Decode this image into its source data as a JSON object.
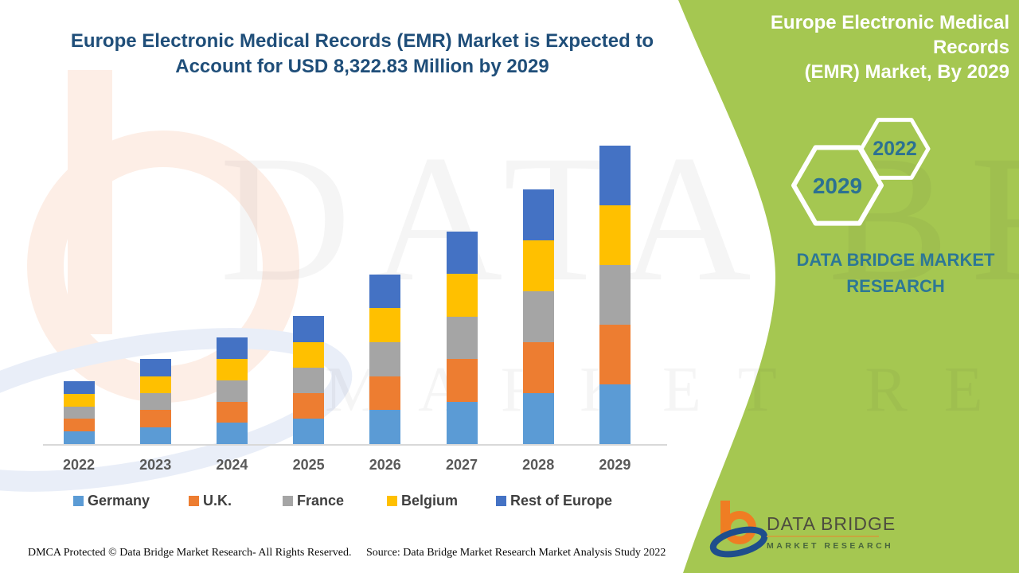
{
  "header": {
    "title_line1": "Europe Electronic Medical Records (EMR) Market is Expected to",
    "title_line2": "Account for USD 8,322.83 Million by 2029"
  },
  "side_panel": {
    "panel_color": "#a5c751",
    "title_line1": "Europe Electronic Medical Records",
    "title_line2": "(EMR) Market, By 2029",
    "hex_back_year": "2022",
    "hex_front_year": "2029",
    "brand_line1": "DATA BRIDGE MARKET",
    "brand_line2": "RESEARCH",
    "brand_text_color": "#2d7795",
    "logo_name": "DATA BRIDGE",
    "logo_sub": "MARKET RESEARCH"
  },
  "watermark": {
    "row1": "DATA BRIDGE",
    "row2": "MARKET RESEARCH"
  },
  "footer": {
    "dmca": "DMCA Protected © Data Bridge Market Research- All Rights Reserved.",
    "source": "Source: Data Bridge Market Research Market Analysis Study 2022"
  },
  "chart_data": {
    "type": "bar",
    "stacked": true,
    "title": "Europe Electronic Medical Records (EMR) Market is Expected to Account for USD 8,322.83 Million by 2029",
    "value_unit": "USD Million",
    "categories": [
      "2022",
      "2023",
      "2024",
      "2025",
      "2026",
      "2027",
      "2028",
      "2029"
    ],
    "series": [
      {
        "name": "Germany",
        "color": "#5b9bd5",
        "values": [
          350,
          474,
          593,
          713,
          947,
          1186,
          1421,
          1664
        ]
      },
      {
        "name": "U.K.",
        "color": "#ed7d31",
        "values": [
          350,
          474,
          593,
          713,
          947,
          1186,
          1421,
          1665
        ]
      },
      {
        "name": "France",
        "color": "#a5a5a5",
        "values": [
          350,
          474,
          593,
          713,
          947,
          1186,
          1421,
          1665
        ]
      },
      {
        "name": "Belgium",
        "color": "#ffc000",
        "values": [
          350,
          474,
          593,
          713,
          947,
          1186,
          1421,
          1664
        ]
      },
      {
        "name": "Rest of Europe",
        "color": "#4472c4",
        "values": [
          350,
          474,
          593,
          713,
          947,
          1186,
          1421,
          1664.83
        ]
      }
    ],
    "stacked_totals": [
      1750,
      2370,
      2965,
      3565,
      4735,
      5930,
      7105,
      8322.83
    ],
    "highlight_total_2029": "8,322.83",
    "xlabel": "",
    "ylabel": "",
    "ylim": [
      0,
      8800
    ],
    "y_axis_visible": false,
    "gridlines": false,
    "legend_position": "bottom"
  }
}
